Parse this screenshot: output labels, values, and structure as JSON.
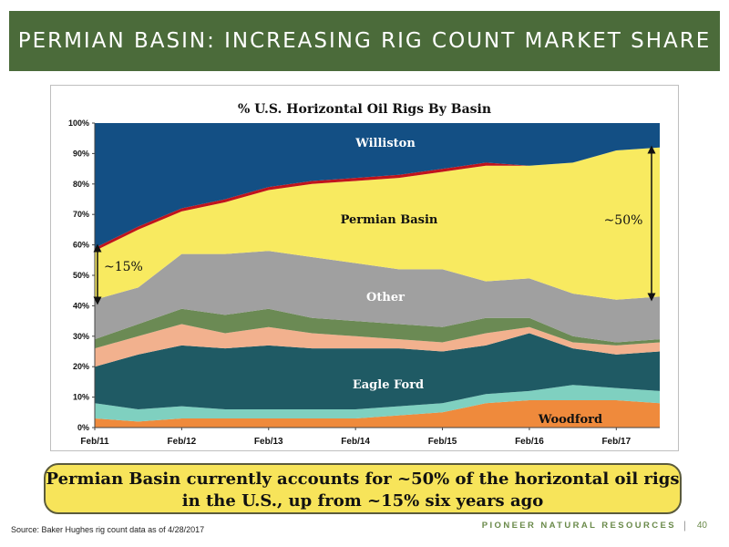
{
  "slide": {
    "title": "PERMIAN BASIN: INCREASING RIG COUNT MARKET SHARE",
    "callout_line1": "Permian Basin currently accounts for ~50% of the horizontal oil rigs",
    "callout_line2": "in the U.S., up from ~15% six years ago",
    "source": "Source: Baker Hughes rig count data as of 4/28/2017",
    "footer_brand": "PIONEER NATURAL RESOURCES",
    "footer_separator": "|",
    "page_number": "40"
  },
  "colors": {
    "title_bar": "#4b6b3a",
    "callout_fill": "#f7e45a",
    "woodford": "#ef8a3c",
    "teal": "#7fd0c0",
    "eagle_ford": "#1f5a64",
    "peach": "#f2b18e",
    "green": "#6b8a54",
    "other": "#a0a0a0",
    "permian": "#f8ea60",
    "red": "#c0141c",
    "williston": "#134f84",
    "brand": "#6a8a4a"
  },
  "chart_data": {
    "type": "area",
    "stacked": true,
    "title": "% U.S. Horizontal Oil Rigs By Basin",
    "x": [
      "Feb/11",
      "Aug/11",
      "Feb/12",
      "Aug/12",
      "Feb/13",
      "Aug/13",
      "Feb/14",
      "Aug/14",
      "Feb/15",
      "Aug/15",
      "Feb/16",
      "Aug/16",
      "Feb/17",
      "Apr/17"
    ],
    "x_ticks": [
      "Feb/11",
      "Feb/12",
      "Feb/13",
      "Feb/14",
      "Feb/15",
      "Feb/16",
      "Feb/17"
    ],
    "y_ticks": [
      "0%",
      "10%",
      "20%",
      "30%",
      "40%",
      "50%",
      "60%",
      "70%",
      "80%",
      "90%",
      "100%"
    ],
    "ylim": [
      0,
      100
    ],
    "series": [
      {
        "name": "Woodford",
        "values": [
          3,
          2,
          3,
          3,
          3,
          3,
          3,
          4,
          5,
          8,
          9,
          9,
          9,
          8
        ]
      },
      {
        "values": [
          5,
          4,
          4,
          3,
          3,
          3,
          3,
          3,
          3,
          3,
          3,
          5,
          4,
          4
        ]
      },
      {
        "name": "Eagle Ford",
        "values": [
          12,
          18,
          20,
          20,
          21,
          20,
          20,
          19,
          17,
          16,
          19,
          12,
          11,
          13
        ]
      },
      {
        "values": [
          6,
          6,
          7,
          5,
          6,
          5,
          4,
          3,
          3,
          4,
          2,
          2,
          3,
          3
        ]
      },
      {
        "values": [
          3,
          4,
          5,
          6,
          6,
          5,
          5,
          5,
          5,
          5,
          3,
          2,
          1,
          1
        ]
      },
      {
        "name": "Other",
        "values": [
          13,
          12,
          18,
          20,
          19,
          20,
          19,
          18,
          19,
          12,
          13,
          14,
          14,
          14
        ]
      },
      {
        "name": "Permian Basin",
        "values": [
          16,
          19,
          14,
          17,
          20,
          24,
          27,
          30,
          32,
          38,
          37,
          43,
          49,
          49
        ]
      },
      {
        "values": [
          1,
          1,
          1,
          1,
          1,
          1,
          1,
          1,
          1,
          1,
          0,
          0,
          0,
          0
        ]
      },
      {
        "name": "Williston",
        "values": [
          41,
          34,
          28,
          25,
          21,
          19,
          18,
          17,
          15,
          13,
          14,
          13,
          9,
          8
        ]
      }
    ],
    "annotations": [
      "~15%",
      "~50%"
    ],
    "grid": false,
    "legend": "none (labels on areas)"
  }
}
